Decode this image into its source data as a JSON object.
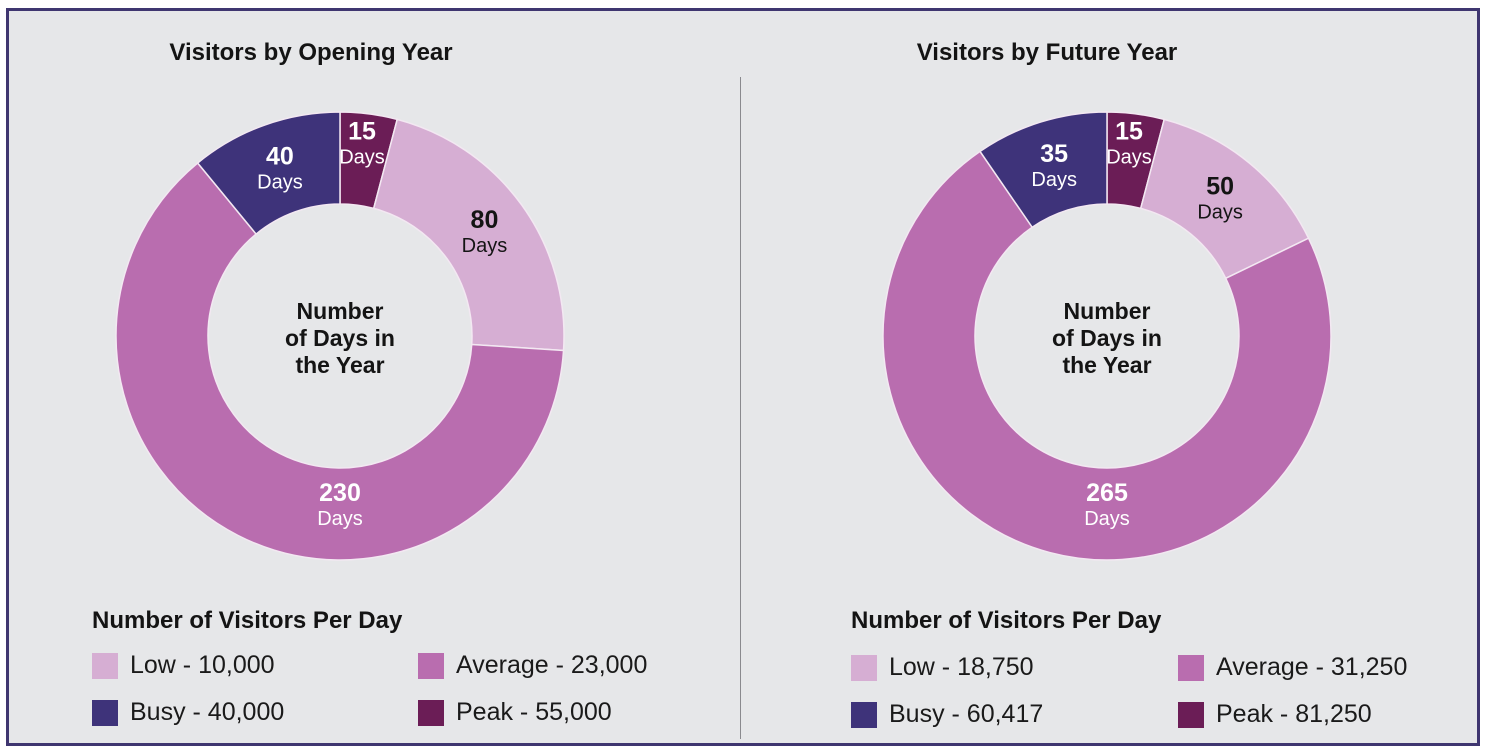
{
  "colors": {
    "low": "#d6aed3",
    "average": "#b96daf",
    "busy": "#3e337a",
    "peak": "#6b1d56",
    "frame": "#3f3670",
    "background": "#e6e7e9"
  },
  "chart_data": [
    {
      "type": "pie",
      "title": "Visitors by Opening Year",
      "center_label": [
        "Number",
        "of Days in",
        "the Year"
      ],
      "slice_order": "clockwise from top",
      "slices": [
        {
          "category": "Peak",
          "value": 15,
          "label": "15",
          "unit": "Days"
        },
        {
          "category": "Low",
          "value": 80,
          "label": "80",
          "unit": "Days"
        },
        {
          "category": "Average",
          "value": 230,
          "label": "230",
          "unit": "Days"
        },
        {
          "category": "Busy",
          "value": 40,
          "label": "40",
          "unit": "Days"
        }
      ],
      "legend_title": "Number of Visitors Per Day",
      "legend": [
        {
          "category": "Low",
          "text": "Low - 10,000",
          "visitors_per_day": 10000
        },
        {
          "category": "Average",
          "text": "Average - 23,000",
          "visitors_per_day": 23000
        },
        {
          "category": "Busy",
          "text": "Busy - 40,000",
          "visitors_per_day": 40000
        },
        {
          "category": "Peak",
          "text": "Peak - 55,000",
          "visitors_per_day": 55000
        }
      ]
    },
    {
      "type": "pie",
      "title": "Visitors by Future Year",
      "center_label": [
        "Number",
        "of Days in",
        "the Year"
      ],
      "slice_order": "clockwise from top",
      "slices": [
        {
          "category": "Peak",
          "value": 15,
          "label": "15",
          "unit": "Days"
        },
        {
          "category": "Low",
          "value": 50,
          "label": "50",
          "unit": "Days"
        },
        {
          "category": "Average",
          "value": 265,
          "label": "265",
          "unit": "Days"
        },
        {
          "category": "Busy",
          "value": 35,
          "label": "35",
          "unit": "Days"
        }
      ],
      "legend_title": "Number of Visitors Per Day",
      "legend": [
        {
          "category": "Low",
          "text": "Low - 18,750",
          "visitors_per_day": 18750
        },
        {
          "category": "Average",
          "text": "Average - 31,250",
          "visitors_per_day": 31250
        },
        {
          "category": "Busy",
          "text": "Busy - 60,417",
          "visitors_per_day": 60417
        },
        {
          "category": "Peak",
          "text": "Peak - 81,250",
          "visitors_per_day": 81250
        }
      ]
    }
  ]
}
